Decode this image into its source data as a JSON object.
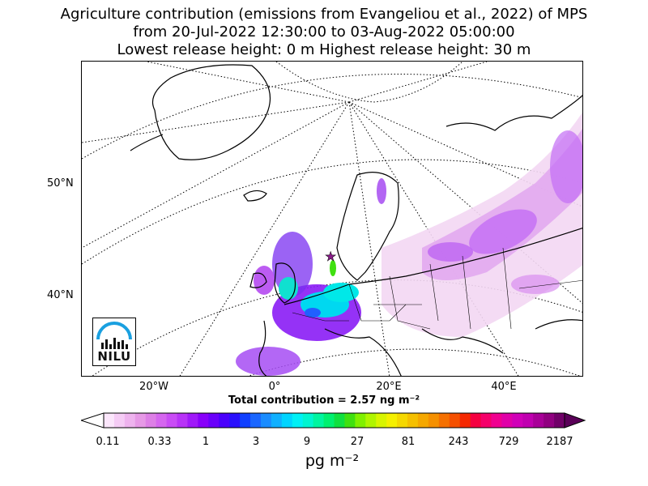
{
  "title": {
    "line1": "Agriculture contribution (emissions from Evangeliou et al., 2022) of MPS",
    "line2": "from 20-Jul-2022 12:30:00 to 03-Aug-2022 05:00:00",
    "line3": "Lowest release height: 0 m      Highest release height: 30 m"
  },
  "map": {
    "lat_labels": [
      "50°N",
      "40°N"
    ],
    "lon_labels": [
      "20°W",
      "0°",
      "20°E",
      "40°E"
    ],
    "receptor_marker": "star-icon",
    "logo_text": "NILU"
  },
  "total_label": "Total contribution = 2.57 ng m⁻²",
  "colorbar": {
    "tick_labels": [
      "0.11",
      "0.33",
      "1",
      "3",
      "9",
      "27",
      "81",
      "243",
      "729",
      "2187"
    ],
    "unit": "pg m⁻²",
    "colors": [
      "#fbe6fb",
      "#f5ccf5",
      "#eeb3ee",
      "#e699e6",
      "#dd7fe6",
      "#d566ef",
      "#c94cf5",
      "#b833f7",
      "#a019f9",
      "#8800fa",
      "#6a00fb",
      "#4a00fc",
      "#2a10fd",
      "#1040ff",
      "#1a66ff",
      "#1a8cff",
      "#10b0ff",
      "#00d4ff",
      "#00f0f5",
      "#00f5d0",
      "#00f5a0",
      "#00f070",
      "#10e040",
      "#40e010",
      "#80f000",
      "#b0f500",
      "#d8f500",
      "#f5f000",
      "#f5d800",
      "#f5c000",
      "#f5a800",
      "#f59000",
      "#f57000",
      "#f55000",
      "#f52800",
      "#f50040",
      "#f5006a",
      "#f00090",
      "#e000a8",
      "#d000b8",
      "#c000b0",
      "#a80098",
      "#900080",
      "#700068"
    ]
  }
}
